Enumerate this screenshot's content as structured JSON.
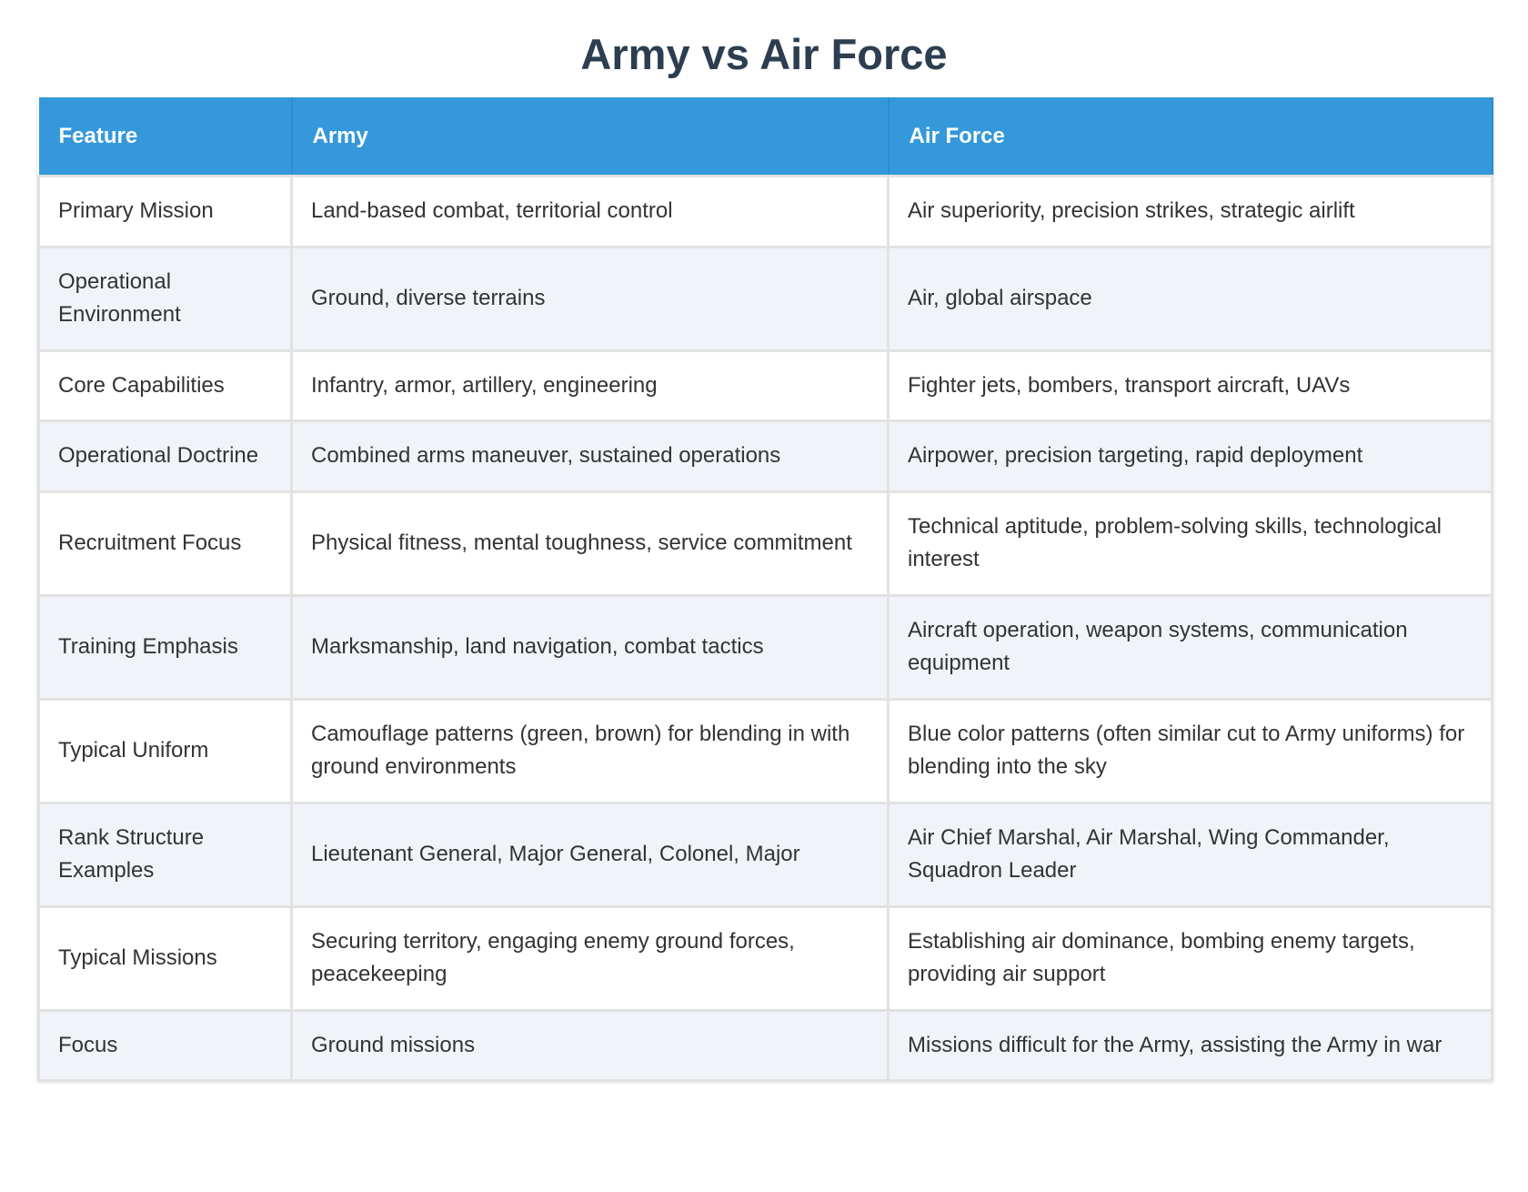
{
  "title": "Army vs Air Force",
  "table": {
    "headers": [
      "Feature",
      "Army",
      "Air Force"
    ],
    "rows": [
      [
        "Primary Mission",
        "Land-based combat, territorial control",
        "Air superiority, precision strikes, strategic airlift"
      ],
      [
        "Operational Environment",
        "Ground, diverse terrains",
        "Air, global airspace"
      ],
      [
        "Core Capabilities",
        "Infantry, armor, artillery, engineering",
        "Fighter jets, bombers, transport aircraft, UAVs"
      ],
      [
        "Operational Doctrine",
        "Combined arms maneuver, sustained operations",
        "Airpower, precision targeting, rapid deployment"
      ],
      [
        "Recruitment Focus",
        "Physical fitness, mental toughness, service commitment",
        "Technical aptitude, problem-solving skills, technological interest"
      ],
      [
        "Training Emphasis",
        "Marksmanship, land navigation, combat tactics",
        "Aircraft operation, weapon systems, communication equipment"
      ],
      [
        "Typical Uniform",
        "Camouflage patterns (green, brown) for blending in with ground environments",
        "Blue color patterns (often similar cut to Army uniforms) for blending into the sky"
      ],
      [
        "Rank Structure Examples",
        "Lieutenant General, Major General, Colonel, Major",
        "Air Chief Marshal, Air Marshal, Wing Commander, Squadron Leader"
      ],
      [
        "Typical Missions",
        "Securing territory, engaging enemy ground forces, peacekeeping",
        "Establishing air dominance, bombing enemy targets, providing air support"
      ],
      [
        "Focus",
        "Ground missions",
        "Missions difficult for the Army, assisting the Army in war"
      ]
    ]
  }
}
